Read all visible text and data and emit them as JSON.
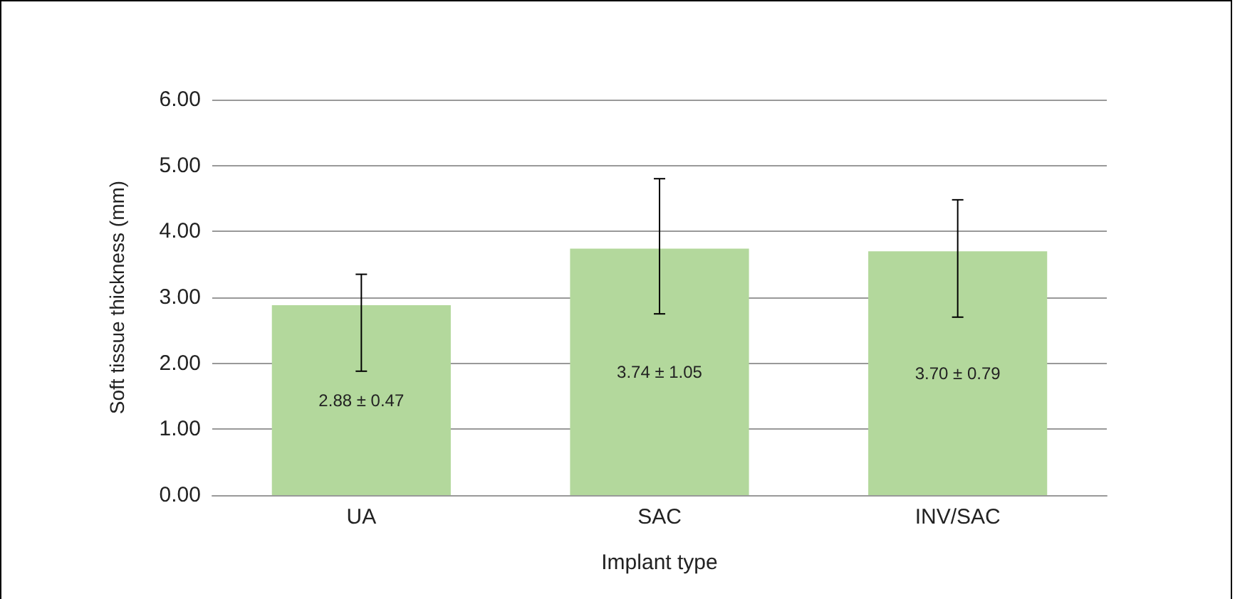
{
  "chart_data": {
    "type": "bar",
    "xlabel": "Implant type",
    "ylabel": "Soft tissue thickness (mm)",
    "categories": [
      "UA",
      "SAC",
      "INV/SAC"
    ],
    "values": [
      2.88,
      3.74,
      3.7
    ],
    "value_labels": [
      "2.88 ± 0.47",
      "3.74 ± 1.05",
      "3.70 ± 0.79"
    ],
    "errors": [
      [
        1.88,
        3.35
      ],
      [
        2.75,
        4.8
      ],
      [
        2.7,
        4.48
      ]
    ],
    "color": "#b3d89c",
    "ylim": [
      0,
      6
    ],
    "yticks": [
      {
        "value": 0,
        "label": "0.00"
      },
      {
        "value": 1,
        "label": "1.00"
      },
      {
        "value": 2,
        "label": "2.00"
      },
      {
        "value": 3,
        "label": "3.00"
      },
      {
        "value": 4,
        "label": "4.00"
      },
      {
        "value": 5,
        "label": "5.00"
      },
      {
        "value": 6,
        "label": "6.00"
      }
    ],
    "grid": "y"
  }
}
